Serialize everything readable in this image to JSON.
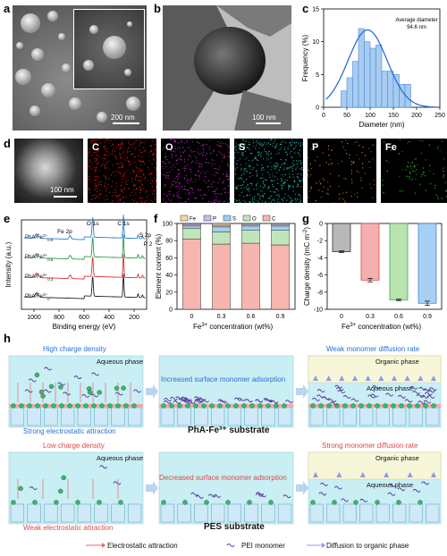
{
  "panels": {
    "a": "a",
    "b": "b",
    "c": "c",
    "d": "d",
    "e": "e",
    "f": "f",
    "g": "g",
    "h": "h"
  },
  "scalebars": {
    "a": "200 nm",
    "b": "100 nm",
    "d": "100 nm"
  },
  "eds_maps": [
    {
      "label": "C",
      "color": "#e01818"
    },
    {
      "label": "O",
      "color": "#c02ec8"
    },
    {
      "label": "S",
      "color": "#2ac8c8"
    },
    {
      "label": "P",
      "color": "#e08a20"
    },
    {
      "label": "Fe",
      "color": "#30c830"
    }
  ],
  "chart_data": [
    {
      "panel": "c",
      "type": "bar",
      "xlabel": "Diameter (nm)",
      "ylabel": "Frequency (%)",
      "annotation": [
        "Average diameter",
        "94.6 nm"
      ],
      "xlim": [
        0,
        250
      ],
      "ylim": [
        0,
        15
      ],
      "xticks": [
        0,
        50,
        100,
        150,
        200,
        250
      ],
      "yticks": [
        0,
        5,
        10,
        15
      ],
      "bin_width": 12.5,
      "bins": [
        {
          "x": 43.75,
          "value": 2.5
        },
        {
          "x": 56.25,
          "value": 4.5
        },
        {
          "x": 68.75,
          "value": 7.0
        },
        {
          "x": 81.25,
          "value": 12.0
        },
        {
          "x": 93.75,
          "value": 10.0
        },
        {
          "x": 106.25,
          "value": 9.0
        },
        {
          "x": 118.75,
          "value": 9.5
        },
        {
          "x": 131.25,
          "value": 5.5
        },
        {
          "x": 143.75,
          "value": 5.5
        },
        {
          "x": 156.25,
          "value": 5.0
        },
        {
          "x": 168.75,
          "value": 3.5
        },
        {
          "x": 181.25,
          "value": 3.5
        }
      ],
      "fit": {
        "type": "gaussian",
        "mean": 94.6,
        "sigma": 42,
        "peak": 11.8
      }
    },
    {
      "panel": "e",
      "type": "line",
      "xlabel": "Binding energy (eV)",
      "ylabel": "Intensity (a.u.)",
      "xlim": [
        1100,
        100
      ],
      "xticks": [
        1000,
        800,
        600,
        400,
        200
      ],
      "series": [
        {
          "name": "PhA/Fe",
          "sup": "3+",
          "sub": "0",
          "color": "#222222",
          "offset": 0
        },
        {
          "name": "PhA/Fe",
          "sup": "3+",
          "sub": "0.3",
          "color": "#e03030",
          "offset": 1
        },
        {
          "name": "PhA/Fe",
          "sup": "3+",
          "sub": "0.6",
          "color": "#2a9a4a",
          "offset": 2
        },
        {
          "name": "PhA/Fe",
          "sup": "3+",
          "sub": "0.9",
          "color": "#2a7ad8",
          "offset": 3
        }
      ],
      "peaks": [
        {
          "label": "O 1s",
          "ev": 531
        },
        {
          "label": "C 1s",
          "ev": 285
        },
        {
          "label": "Fe 2p",
          "ev": 711
        },
        {
          "label": "S 2p",
          "ev": 168
        },
        {
          "label": "P 2p",
          "ev": 133
        }
      ]
    },
    {
      "panel": "f",
      "type": "bar",
      "stacked": true,
      "xlabel": "Fe3+ concentration (wt%)",
      "xlabel_parts": [
        "Fe",
        "3+",
        " concentration (wt%)"
      ],
      "ylabel": "Element content (%)",
      "categories": [
        "0",
        "0.3",
        "0.6",
        "0.9"
      ],
      "ylim": [
        0,
        100
      ],
      "yticks": [
        0,
        20,
        40,
        60,
        80,
        100
      ],
      "series": [
        {
          "name": "C",
          "color": "#f7b5b0",
          "values": [
            82,
            76,
            77,
            75
          ]
        },
        {
          "name": "O",
          "color": "#bfe6b8",
          "values": [
            12,
            14,
            15,
            17
          ]
        },
        {
          "name": "S",
          "color": "#9fd0ee",
          "values": [
            3,
            6,
            5,
            5
          ]
        },
        {
          "name": "P",
          "color": "#d2b8ec",
          "values": [
            2,
            2,
            2,
            2
          ]
        },
        {
          "name": "Fe",
          "color": "#f6d8a0",
          "values": [
            1,
            2,
            1,
            1
          ]
        }
      ],
      "legend_order": [
        "Fe",
        "P",
        "S",
        "O",
        "C"
      ]
    },
    {
      "panel": "g",
      "type": "bar",
      "xlabel": "Fe3+ concentration (wt%)",
      "xlabel_parts": [
        "Fe",
        "3+",
        " concentration (wt%)"
      ],
      "ylabel": "Charge density (mC m-2)",
      "ylabel_parts": [
        "Charge density (mC m",
        "-2",
        ")"
      ],
      "categories": [
        "0",
        "0.3",
        "0.6",
        "0.9"
      ],
      "values": [
        -3.3,
        -6.6,
        -8.9,
        -9.3
      ],
      "errors": [
        0.1,
        0.2,
        0.1,
        0.25
      ],
      "colors": [
        "#b8b8b8",
        "#f4b0b0",
        "#b8e4b0",
        "#a8d0f4"
      ],
      "edge_colors": [
        "#222222",
        "#e03030",
        "#2a9a4a",
        "#2a7ad8"
      ],
      "ylim": [
        -10,
        0
      ],
      "yticks": [
        0,
        -2,
        -4,
        -6,
        -8,
        -10
      ]
    }
  ],
  "h": {
    "top_row": {
      "left_label": "High charge density",
      "left_aqueous": "Aqueous phase",
      "left_bottom": "Strong electrostatic attraction",
      "middle_label": "Increased surface monomer adsorption",
      "right_label": "Weak monomer diffusion rate",
      "right_organic": "Organic phase",
      "right_aqueous": "Aqueous phase",
      "substrate_title": "PhA-Fe³⁺ substrate"
    },
    "bottom_row": {
      "left_label": "Low charge density",
      "left_aqueous": "Aqueous phase",
      "left_bottom": "Weak electrostatic attraction",
      "middle_label": "Decreased surface monomer adsorption",
      "right_label": "Strong monomer diffusion rate",
      "right_organic": "Organic phase",
      "right_aqueous": "Aqueous phase",
      "substrate_title": "PES substrate"
    },
    "legend": {
      "electrostatic": "Electrostatic attraction",
      "pei": "PEI monomer",
      "diffusion": "Diffusion to organic phase"
    },
    "colors": {
      "blue_text": "#2a6fd6",
      "red_text": "#e04848",
      "aqueous": "#c9eef4",
      "organic": "#f8f6d8",
      "substrate": "#cfe9f6"
    }
  }
}
